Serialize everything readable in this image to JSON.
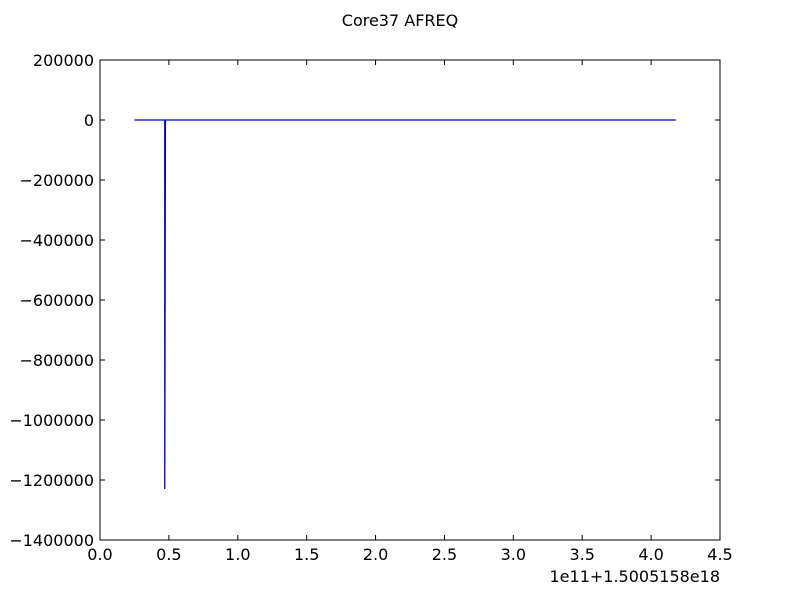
{
  "chart_data": {
    "type": "line",
    "title": "Core37 AFREQ",
    "xlabel": "",
    "ylabel": "",
    "x_offset_label": "1e11+1.5005158e18",
    "xlim": [
      0.0,
      4.5
    ],
    "ylim": [
      -1400000,
      200000
    ],
    "x_ticks": [
      0.0,
      0.5,
      1.0,
      1.5,
      2.0,
      2.5,
      3.0,
      3.5,
      4.0,
      4.5
    ],
    "x_tick_labels": [
      "0.0",
      "0.5",
      "1.0",
      "1.5",
      "2.0",
      "2.5",
      "3.0",
      "3.5",
      "4.0",
      "4.5"
    ],
    "y_ticks": [
      200000,
      0,
      -200000,
      -400000,
      -600000,
      -800000,
      -1000000,
      -1200000,
      -1400000
    ],
    "y_tick_labels": [
      "200000",
      "0",
      "−200000",
      "−400000",
      "−600000",
      "−800000",
      "−1000000",
      "−1200000",
      "−1400000"
    ],
    "grid": false,
    "legend": "none",
    "series": [
      {
        "color": "#0000bf",
        "x": [
          0.25,
          0.47,
          0.47,
          0.475,
          4.18
        ],
        "y": [
          0,
          0,
          -1230000,
          0,
          0
        ]
      }
    ]
  }
}
